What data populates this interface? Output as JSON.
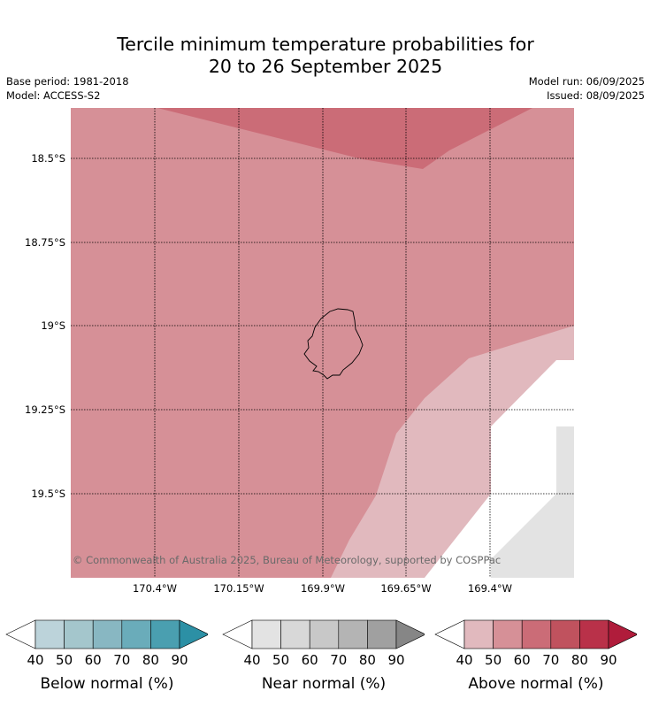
{
  "header": {
    "title_line1": "Tercile minimum temperature probabilities for",
    "title_line2": "20 to 26 September 2025",
    "base_period": "Base period: 1981-2018",
    "model": "Model: ACCESS-S2",
    "model_run": "Model run: 06/09/2025",
    "issued": "Issued: 08/09/2025"
  },
  "map": {
    "latitude_labels": [
      "18.5°S",
      "18.75°S",
      "19°S",
      "19.25°S",
      "19.5°S"
    ],
    "longitude_labels": [
      "170.4°W",
      "170.15°W",
      "169.9°W",
      "169.65°W",
      "169.4°W"
    ],
    "copyright": "© Commonwealth of Australia 2025, Bureau of Meteorology, supported by COSPPac",
    "colors": {
      "above_50_60": "#d69097",
      "above_60_70": "#cb6c77",
      "above_40_50": "#e1b9be",
      "near_40_50": "#e3e3e3",
      "coastline": "#000000",
      "gridline": "#000000"
    }
  },
  "colorbars": [
    {
      "label": "Below normal (%)",
      "ticks": [
        "40",
        "50",
        "60",
        "70",
        "80",
        "90"
      ],
      "colors": [
        "#ffffff",
        "#bcd3da",
        "#a4c6cc",
        "#88b7c2",
        "#6aacba",
        "#4a9fb0",
        "#2c90a5"
      ]
    },
    {
      "label": "Near normal (%)",
      "ticks": [
        "40",
        "50",
        "60",
        "70",
        "80",
        "90"
      ],
      "colors": [
        "#ffffff",
        "#e3e3e3",
        "#d8d8d8",
        "#c8c8c8",
        "#b4b4b4",
        "#a0a0a0",
        "#868686"
      ]
    },
    {
      "label": "Above normal (%)",
      "ticks": [
        "40",
        "50",
        "60",
        "70",
        "80",
        "90"
      ],
      "colors": [
        "#ffffff",
        "#e1b9be",
        "#d69097",
        "#cb6c77",
        "#c0525e",
        "#b93149",
        "#b01c3b"
      ]
    }
  ]
}
